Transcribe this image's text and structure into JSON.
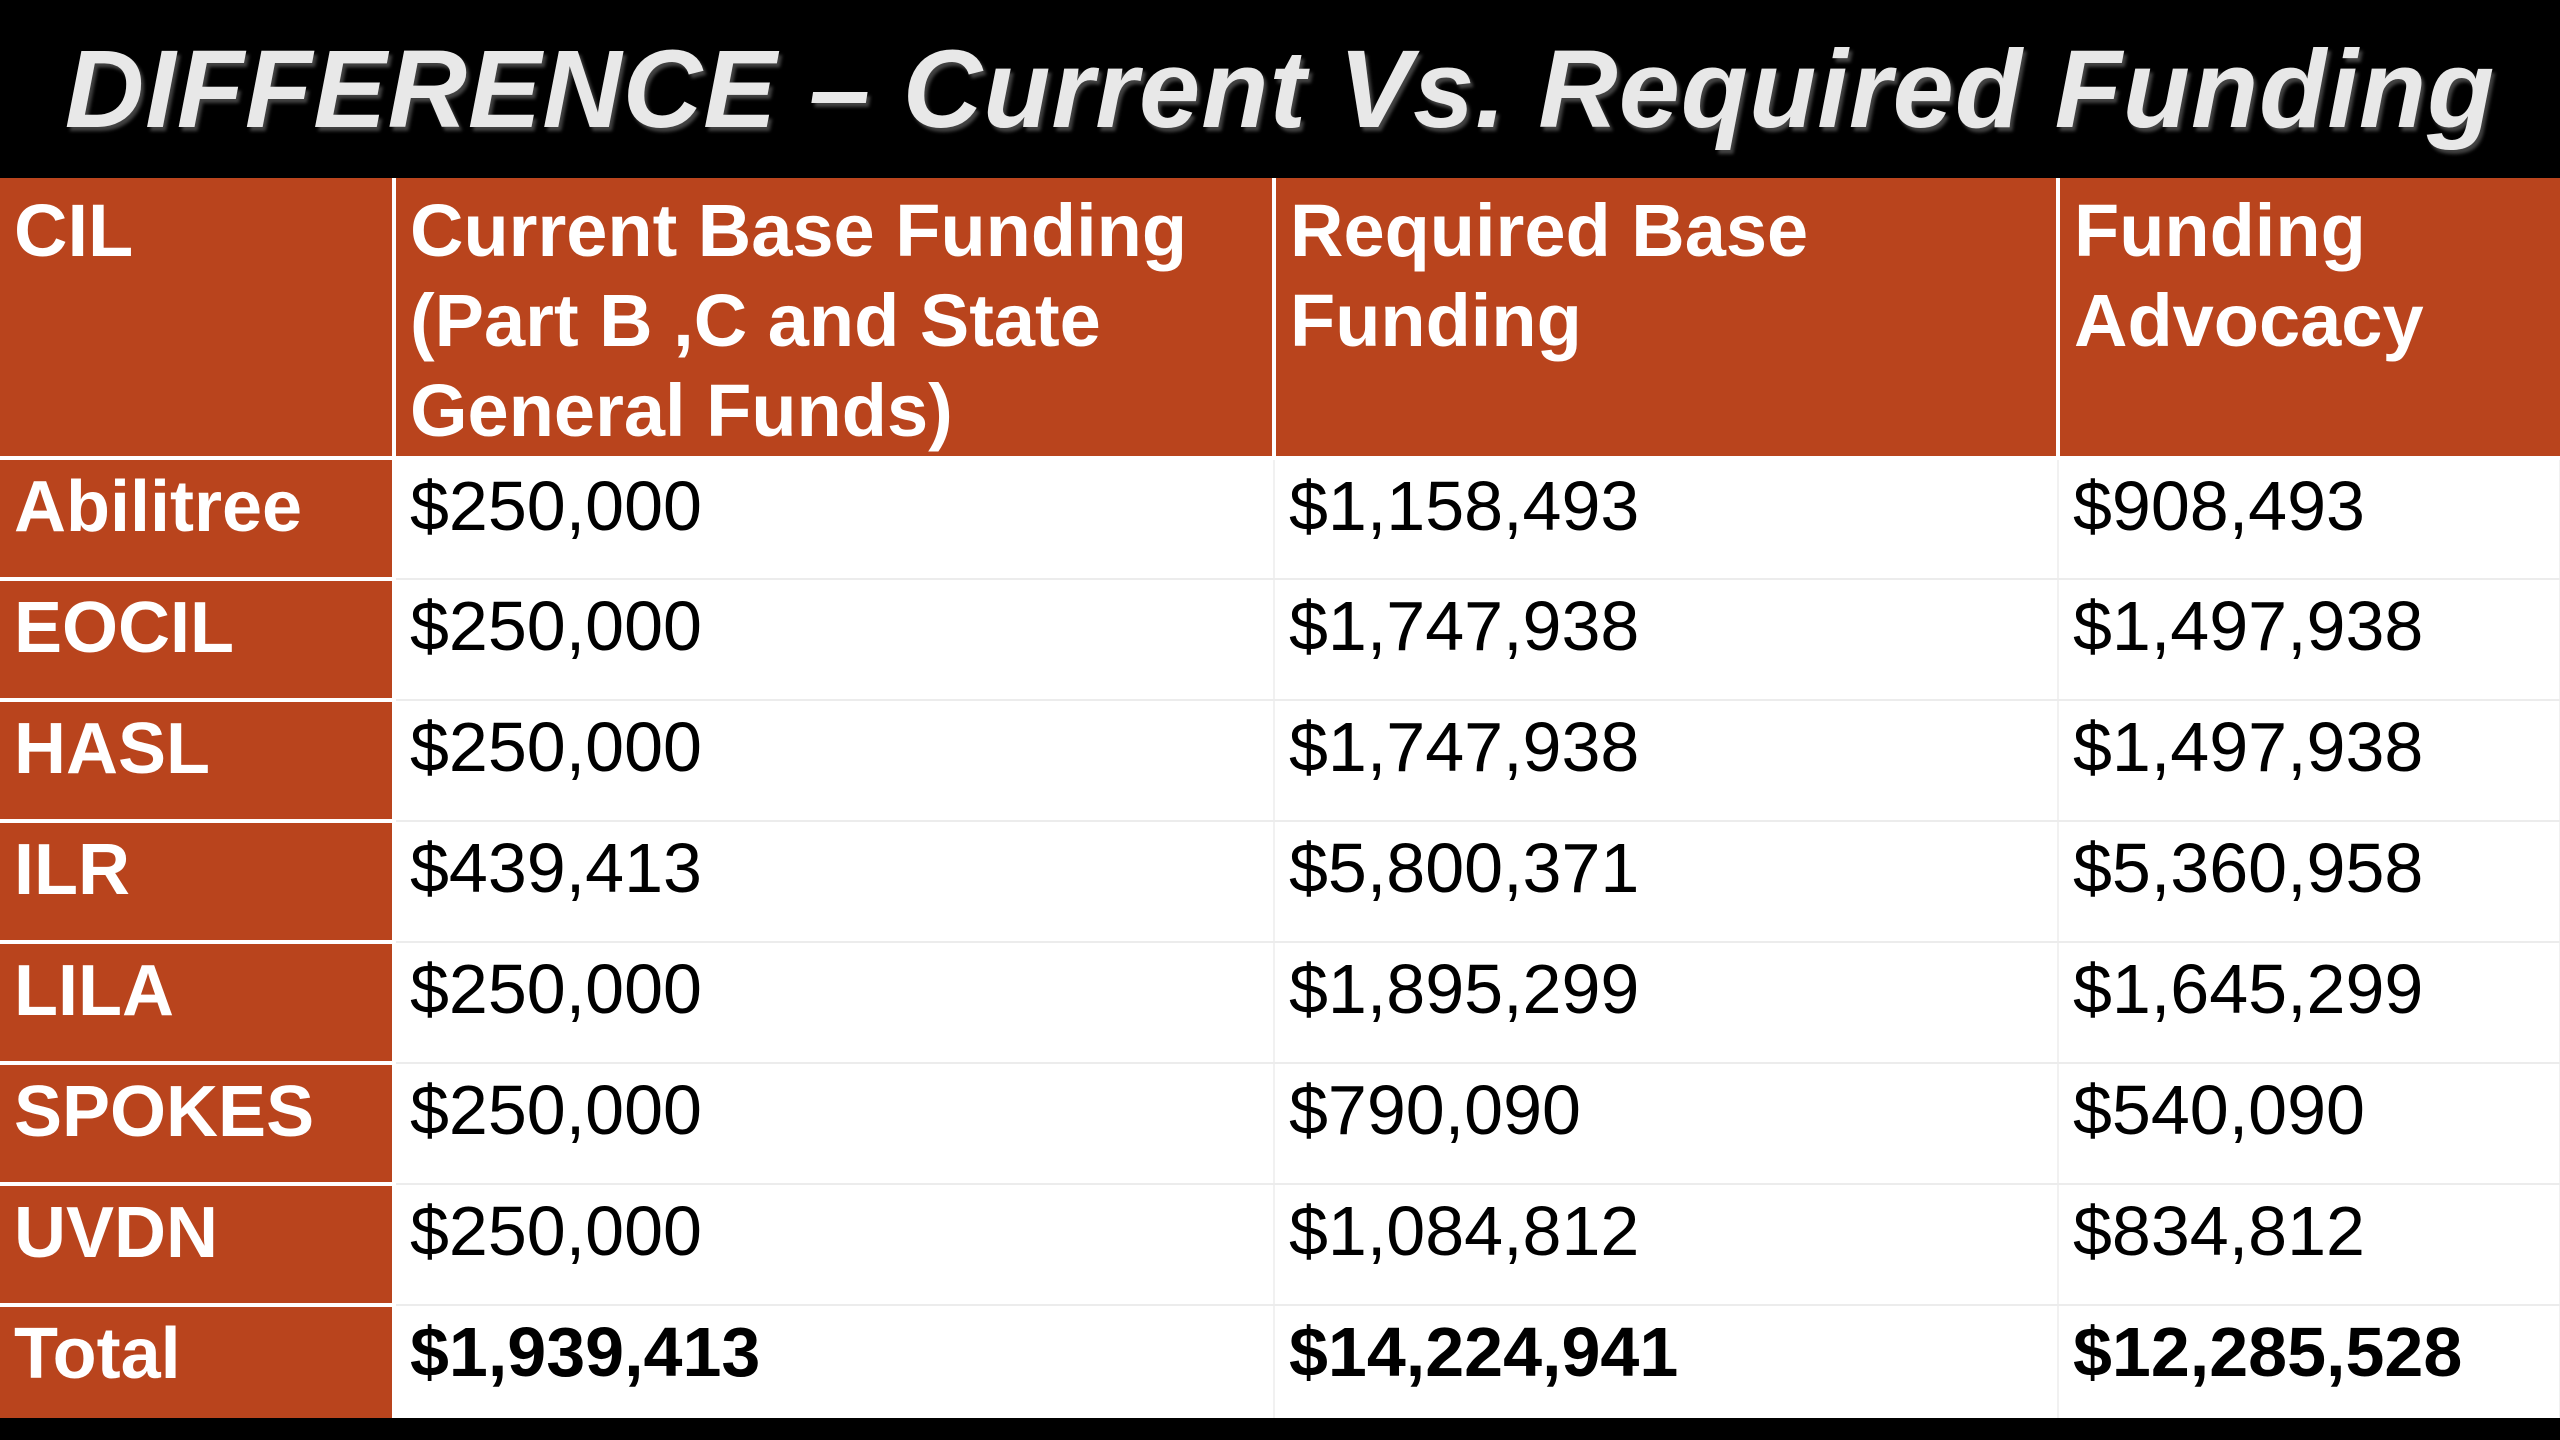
{
  "title": "DIFFERENCE – Current Vs. Required Funding",
  "table": {
    "headers": [
      "CIL",
      "Current Base Funding (Part B ,C and State General Funds)",
      "Required Base Funding",
      "Funding Advocacy"
    ],
    "rows": [
      {
        "cil": "Abilitree",
        "current": "$250,000",
        "required": "$1,158,493",
        "advocacy": "$908,493"
      },
      {
        "cil": "EOCIL",
        "current": "$250,000",
        "required": "$1,747,938",
        "advocacy": "$1,497,938"
      },
      {
        "cil": "HASL",
        "current": "$250,000",
        "required": "$1,747,938",
        "advocacy": "$1,497,938"
      },
      {
        "cil": "ILR",
        "current": "$439,413",
        "required": "$5,800,371",
        "advocacy": "$5,360,958"
      },
      {
        "cil": "LILA",
        "current": "$250,000",
        "required": "$1,895,299",
        "advocacy": "$1,645,299"
      },
      {
        "cil": "SPOKES",
        "current": "$250,000",
        "required": "$790,090",
        "advocacy": "$540,090"
      },
      {
        "cil": "UVDN",
        "current": "$250,000",
        "required": "$1,084,812",
        "advocacy": "$834,812"
      }
    ],
    "total": {
      "cil": "Total",
      "current": "$1,939,413",
      "required": "$14,224,941",
      "advocacy": "$12,285,528"
    }
  },
  "colors": {
    "header_bg": "#b9441d",
    "background": "#000000",
    "cell_bg": "#ffffff"
  }
}
